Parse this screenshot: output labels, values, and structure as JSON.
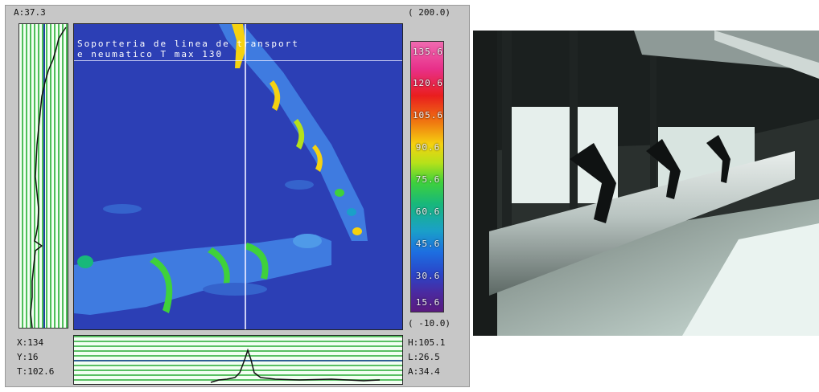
{
  "thermal": {
    "a_value": "A:37.3",
    "scale_max": "( 200.0)",
    "scale_min": "( -10.0)",
    "caption_line1": "Soporteria de linea de transport",
    "caption_line2": "e neumatico T max 130",
    "scale_ticks": [
      "135.6",
      "120.6",
      "105.6",
      "90.6",
      "75.6",
      "60.6",
      "45.6",
      "30.6",
      "15.6"
    ],
    "readout_x": "X:134",
    "readout_y": "Y:16",
    "readout_t": "T:102.6",
    "readout_h": "H:105.1",
    "readout_l": "L:26.5",
    "readout_a": "A:34.4"
  },
  "colors": {
    "map_background": "#2c3fb5",
    "pipe": "#3f7be0",
    "hot": "#f5d210",
    "warm": "#3fd13b",
    "cursor": "#e8e8ff"
  }
}
